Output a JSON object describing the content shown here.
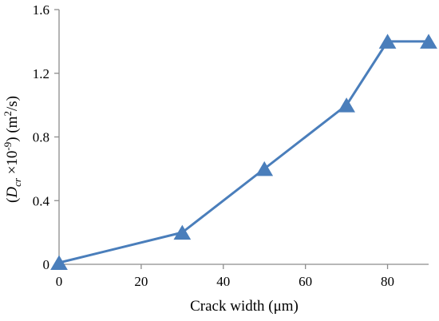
{
  "chart_data": {
    "type": "line",
    "title": "",
    "xlabel": "Crack width (μm)",
    "ylabel": {
      "open": "(",
      "symbol": "D",
      "subscript": "cr",
      "multiplier": " ×10",
      "exponent": "-9",
      "close": ") (m",
      "unit_exponent": "2",
      "unit_tail": "/s)"
    },
    "xlim": [
      0,
      90
    ],
    "ylim": [
      0,
      1.6
    ],
    "xticks": [
      0,
      20,
      40,
      60,
      80
    ],
    "yticks": [
      0,
      0.4,
      0.8,
      1.2,
      1.6
    ],
    "ytick_labels": [
      "0",
      "0.4",
      "0.8",
      "1.2",
      "1.6"
    ],
    "grid": false,
    "marker": "triangle",
    "color": "#4a7ebb",
    "series": [
      {
        "x": [
          0,
          30,
          50,
          70,
          80,
          90
        ],
        "y": [
          0.01,
          0.2,
          0.6,
          1.0,
          1.4,
          1.4
        ]
      }
    ]
  }
}
